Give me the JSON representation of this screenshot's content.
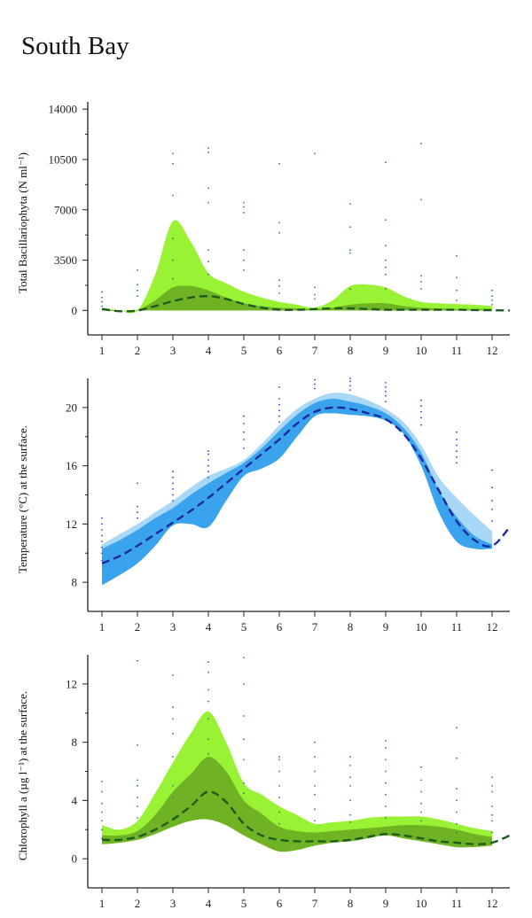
{
  "page": {
    "title": "South Bay"
  },
  "chart_data": [
    {
      "type": "area",
      "name": "bacillariophyta",
      "ylabel": "Total Bacillariophyta (N ml⁻¹)",
      "ylim": [
        -1700,
        14500
      ],
      "xlim": [
        0.6,
        12.5
      ],
      "yticks": [
        0,
        3500,
        7000,
        10500,
        14000
      ],
      "ytick_labels": [
        "0",
        "3500",
        "7000",
        "10500",
        "14000"
      ],
      "xticks": [
        1,
        2,
        3,
        4,
        5,
        6,
        7,
        8,
        9,
        10,
        11,
        12
      ],
      "xtick_labels": [
        "1",
        "2",
        "3",
        "4",
        "5",
        "6",
        "7",
        "8",
        "9",
        "10",
        "11",
        "12"
      ],
      "minor_y": [
        1750,
        5250,
        8750,
        12250
      ],
      "colors": {
        "outer": "#99f233",
        "inner": "#6fb324",
        "line": "#1f5a1f",
        "dots": "#2a7a72"
      },
      "x": [
        1,
        1.5,
        2,
        2.5,
        3,
        3.5,
        4,
        4.5,
        5,
        5.5,
        6,
        6.5,
        7,
        7.5,
        8,
        8.5,
        9,
        9.5,
        10,
        10.5,
        11,
        11.5,
        12
      ],
      "outer_upper": [
        200,
        0,
        0,
        2500,
        6200,
        4800,
        2600,
        1900,
        1300,
        900,
        600,
        400,
        200,
        700,
        1700,
        1800,
        1600,
        1000,
        600,
        500,
        450,
        400,
        300
      ],
      "outer_lower": [
        0,
        -50,
        0,
        0,
        0,
        0,
        0,
        0,
        0,
        0,
        0,
        0,
        0,
        0,
        0,
        0,
        0,
        0,
        0,
        0,
        0,
        0,
        0
      ],
      "inner_upper": [
        100,
        -20,
        50,
        700,
        1600,
        1700,
        1400,
        900,
        500,
        300,
        200,
        150,
        100,
        200,
        400,
        500,
        500,
        300,
        200,
        150,
        100,
        100,
        100
      ],
      "inner_lower": [
        0,
        -50,
        0,
        0,
        0,
        0,
        0,
        0,
        0,
        0,
        0,
        0,
        0,
        0,
        0,
        0,
        0,
        0,
        0,
        0,
        0,
        0,
        0
      ],
      "line_x": [
        1,
        1.5,
        2,
        2.5,
        3,
        3.5,
        4,
        4.5,
        5,
        5.5,
        6,
        6.5,
        7,
        7.5,
        8,
        8.5,
        9,
        9.5,
        10,
        10.5,
        11,
        11.5,
        12,
        12.5
      ],
      "line_y": [
        100,
        -50,
        0,
        300,
        650,
        900,
        1000,
        800,
        450,
        200,
        50,
        50,
        100,
        150,
        150,
        100,
        50,
        50,
        50,
        50,
        50,
        30,
        20,
        0
      ],
      "dots": [
        [
          1,
          [
            300,
            600,
            900,
            1300
          ]
        ],
        [
          2,
          [
            1000,
            1400,
            1800,
            2800
          ]
        ],
        [
          3,
          [
            2200,
            3500,
            5000,
            8000,
            10200,
            10900
          ]
        ],
        [
          4,
          [
            2500,
            3400,
            4200,
            7500,
            8500,
            11000,
            11300
          ]
        ],
        [
          5,
          [
            2800,
            3500,
            4200,
            6800,
            7200,
            7500
          ]
        ],
        [
          6,
          [
            1200,
            1700,
            2100,
            5400,
            6100,
            10200
          ]
        ],
        [
          7,
          [
            800,
            1100,
            1600,
            10900
          ]
        ],
        [
          8,
          [
            1500,
            4000,
            4200,
            5800,
            7400
          ]
        ],
        [
          9,
          [
            1500,
            2500,
            3000,
            3500,
            4500,
            6300,
            10300
          ]
        ],
        [
          10,
          [
            1500,
            2000,
            2400,
            7700,
            11600
          ]
        ],
        [
          11,
          [
            700,
            1400,
            2300,
            3800
          ]
        ],
        [
          12,
          [
            400,
            700,
            1000,
            1400
          ]
        ]
      ]
    },
    {
      "type": "area",
      "name": "temperature",
      "ylabel": "Temperature (°C) at the surface.",
      "ylim": [
        6,
        22
      ],
      "xlim": [
        0.6,
        12.5
      ],
      "yticks": [
        8,
        12,
        16,
        20
      ],
      "ytick_labels": [
        "8",
        "12",
        "16",
        "20"
      ],
      "xticks": [
        1,
        2,
        3,
        4,
        5,
        6,
        7,
        8,
        9,
        10,
        11,
        12
      ],
      "xtick_labels": [
        "1",
        "2",
        "3",
        "4",
        "5",
        "6",
        "7",
        "8",
        "9",
        "10",
        "11",
        "12"
      ],
      "minor_y": [
        10,
        14,
        18
      ],
      "colors": {
        "outer": "#a8d8f6",
        "inner": "#3aa3ee",
        "line": "#1a2aa0",
        "dots": "#3a3adb"
      },
      "x": [
        1,
        1.5,
        2,
        2.5,
        3,
        3.5,
        4,
        4.5,
        5,
        5.5,
        6,
        6.5,
        7,
        7.5,
        8,
        8.5,
        9,
        9.5,
        10,
        10.5,
        11,
        11.5,
        12
      ],
      "outer_upper": [
        10.6,
        11.3,
        12.0,
        12.8,
        13.6,
        14.5,
        15.3,
        15.8,
        16.4,
        17.5,
        18.8,
        19.9,
        20.6,
        21.0,
        20.9,
        20.5,
        19.9,
        19.0,
        17.4,
        15.2,
        13.8,
        12.6,
        11.5
      ],
      "outer_lower": [
        7.8,
        8.5,
        9.3,
        10.5,
        11.9,
        12.0,
        11.8,
        13.6,
        15.3,
        15.8,
        16.5,
        18.0,
        19.4,
        19.6,
        19.5,
        19.4,
        19.1,
        18.2,
        16.0,
        12.8,
        10.8,
        10.3,
        10.3
      ],
      "inner_upper": [
        10.3,
        10.9,
        11.6,
        12.4,
        13.1,
        14.0,
        14.8,
        15.5,
        16.2,
        17.2,
        18.4,
        19.5,
        20.3,
        20.6,
        20.4,
        20.1,
        19.6,
        18.6,
        16.9,
        14.3,
        12.5,
        11.2,
        10.6
      ],
      "inner_lower": [
        7.8,
        8.5,
        9.3,
        10.5,
        11.9,
        12.0,
        11.8,
        13.6,
        15.3,
        15.8,
        16.5,
        18.0,
        19.4,
        19.6,
        19.5,
        19.4,
        19.1,
        18.2,
        16.0,
        12.8,
        10.8,
        10.3,
        10.3
      ],
      "line_x": [
        1,
        1.5,
        2,
        2.5,
        3,
        3.5,
        4,
        4.5,
        5,
        5.5,
        6,
        6.5,
        7,
        7.5,
        8,
        8.5,
        9,
        9.5,
        10,
        10.5,
        11,
        11.5,
        12,
        12.5
      ],
      "line_y": [
        9.3,
        9.8,
        10.5,
        11.3,
        12.1,
        12.9,
        13.8,
        14.8,
        15.8,
        16.8,
        17.8,
        18.9,
        19.7,
        20.0,
        19.9,
        19.6,
        19.2,
        18.2,
        16.5,
        14.3,
        12.2,
        10.9,
        10.5,
        11.8
      ],
      "dots": [
        [
          1,
          [
            9.5,
            10.0,
            10.4,
            10.8,
            11.2,
            11.6,
            12.0,
            12.4
          ]
        ],
        [
          2,
          [
            12.4,
            12.8,
            13.2,
            14.8
          ]
        ],
        [
          3,
          [
            13.6,
            14.0,
            14.4,
            14.8,
            15.2,
            15.6
          ]
        ],
        [
          4,
          [
            15.2,
            15.6,
            16.0,
            16.4,
            16.8,
            17.0
          ]
        ],
        [
          5,
          [
            17.2,
            17.8,
            18.3,
            18.9,
            19.4
          ]
        ],
        [
          6,
          [
            19.0,
            19.4,
            19.8,
            20.2,
            20.6,
            21.4
          ]
        ],
        [
          7,
          [
            21.3,
            21.6,
            21.9
          ]
        ],
        [
          8,
          [
            21.2,
            21.5,
            21.8,
            22.0
          ]
        ],
        [
          9,
          [
            20.4,
            20.8,
            21.1,
            21.4,
            21.7
          ]
        ],
        [
          10,
          [
            18.8,
            19.3,
            19.7,
            20.1,
            20.5
          ]
        ],
        [
          11,
          [
            16.2,
            16.6,
            17.0,
            17.4,
            17.8,
            18.3
          ]
        ],
        [
          12,
          [
            12.2,
            13.0,
            13.6,
            14.5,
            15.7
          ]
        ]
      ]
    },
    {
      "type": "area",
      "name": "chlorophyll",
      "ylabel": "Chlorophyll a (µg l⁻¹) at the surface.",
      "ylim": [
        -2,
        14
      ],
      "xlim": [
        0.6,
        12.5
      ],
      "yticks": [
        0,
        4,
        8,
        12
      ],
      "ytick_labels": [
        "0",
        "4",
        "8",
        "12"
      ],
      "xticks": [
        1,
        2,
        3,
        4,
        5,
        6,
        7,
        8,
        9,
        10,
        11,
        12
      ],
      "xtick_labels": [
        "1",
        "2",
        "3",
        "4",
        "5",
        "6",
        "7",
        "8",
        "9",
        "10",
        "11",
        "12"
      ],
      "minor_y": [
        2,
        6,
        10
      ],
      "colors": {
        "outer": "#99f233",
        "inner": "#6fb324",
        "line": "#1f5a1f",
        "dots": "#2a7a72"
      },
      "x": [
        1,
        1.5,
        2,
        2.5,
        3,
        3.5,
        4,
        4.5,
        5,
        5.5,
        6,
        6.5,
        7,
        7.5,
        8,
        8.5,
        9,
        9.5,
        10,
        10.5,
        11,
        11.5,
        12
      ],
      "outer_upper": [
        2.3,
        2.0,
        2.6,
        4.5,
        6.6,
        8.6,
        10.1,
        8.0,
        5.2,
        4.4,
        3.6,
        3.0,
        2.4,
        2.5,
        2.6,
        2.8,
        2.9,
        2.9,
        2.9,
        2.7,
        2.4,
        2.1,
        1.9
      ],
      "outer_lower": [
        1.0,
        1.1,
        1.3,
        1.7,
        2.2,
        2.6,
        2.7,
        2.3,
        1.6,
        1.0,
        0.5,
        0.6,
        0.9,
        1.1,
        1.2,
        1.4,
        1.6,
        1.4,
        1.2,
        1.0,
        0.8,
        0.8,
        0.9
      ],
      "inner_upper": [
        1.6,
        1.6,
        1.9,
        3.0,
        4.6,
        5.8,
        7.0,
        6.0,
        4.0,
        3.1,
        2.2,
        1.9,
        1.8,
        1.9,
        2.0,
        2.1,
        2.2,
        2.3,
        2.3,
        2.2,
        2.0,
        1.7,
        1.5
      ],
      "inner_lower": [
        1.0,
        1.1,
        1.3,
        1.7,
        2.2,
        2.6,
        2.7,
        2.3,
        1.6,
        1.0,
        0.5,
        0.6,
        0.9,
        1.1,
        1.2,
        1.4,
        1.6,
        1.4,
        1.2,
        1.0,
        0.8,
        0.8,
        0.9
      ],
      "line_x": [
        1,
        1.5,
        2,
        2.5,
        3,
        3.5,
        4,
        4.5,
        5,
        5.5,
        6,
        6.5,
        7,
        7.5,
        8,
        8.5,
        9,
        9.5,
        10,
        10.5,
        11,
        11.5,
        12,
        12.5
      ],
      "line_y": [
        1.3,
        1.3,
        1.5,
        2.0,
        2.7,
        3.6,
        4.6,
        3.9,
        2.4,
        1.6,
        1.3,
        1.2,
        1.2,
        1.2,
        1.3,
        1.5,
        1.7,
        1.6,
        1.4,
        1.2,
        1.1,
        1.0,
        1.1,
        1.6
      ],
      "dots": [
        [
          1,
          [
            1.4,
            2.0,
            2.6,
            3.2,
            3.8,
            4.6,
            5.3
          ]
        ],
        [
          2,
          [
            2.8,
            3.6,
            4.2,
            5.0,
            5.4,
            7.8,
            13.6
          ]
        ],
        [
          3,
          [
            4.2,
            5.0,
            7.0,
            8.6,
            9.6,
            10.4,
            12.6
          ]
        ],
        [
          4,
          [
            7.2,
            8.2,
            9.6,
            10.8,
            11.6,
            12.8,
            13.5
          ]
        ],
        [
          5,
          [
            4.5,
            5.2,
            6.8,
            8.2,
            9.8,
            12.0,
            13.8
          ]
        ],
        [
          6,
          [
            2.4,
            3.2,
            4.2,
            5.0,
            6.0,
            6.8,
            7.0
          ]
        ],
        [
          7,
          [
            2.6,
            3.4,
            4.4,
            5.0,
            6.0,
            7.0,
            8.0
          ]
        ],
        [
          8,
          [
            2.5,
            3.0,
            4.0,
            5.0,
            5.6,
            6.4,
            7.0
          ]
        ],
        [
          9,
          [
            2.8,
            3.6,
            4.4,
            5.2,
            6.0,
            6.8,
            7.6,
            8.1
          ]
        ],
        [
          10,
          [
            2.6,
            3.2,
            3.8,
            4.6,
            5.4,
            6.3
          ]
        ],
        [
          11,
          [
            1.8,
            2.4,
            3.2,
            4.0,
            4.8,
            6.9,
            9.0
          ]
        ],
        [
          12,
          [
            1.8,
            2.6,
            3.0,
            3.6,
            4.6,
            5.0,
            5.6
          ]
        ]
      ]
    }
  ]
}
